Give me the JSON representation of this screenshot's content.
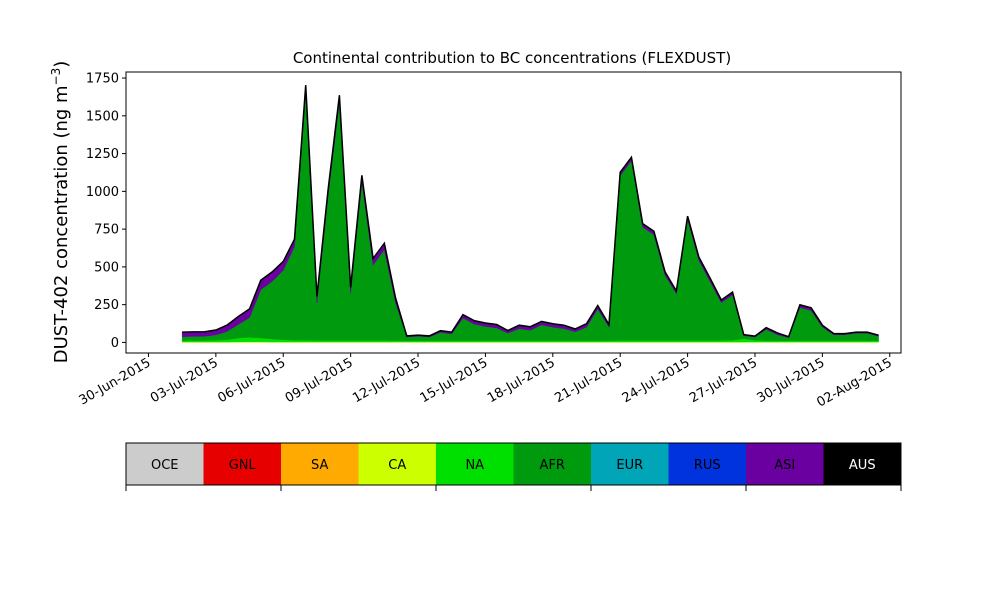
{
  "chart_data": {
    "type": "area",
    "stacked": true,
    "title": "Continental contribution to BC concentrations (FLEXDUST)",
    "ylabel": "DUST-402 concentration (ng m",
    "ylabel_superscript": "−3",
    "ylabel_suffix": ")",
    "xlabel": "",
    "xlim": [
      "2015-06-29",
      "2015-08-02T12:00"
    ],
    "ylim": [
      -70,
      1790
    ],
    "yticks": [
      0,
      250,
      500,
      750,
      1000,
      1250,
      1500,
      1750
    ],
    "xticks": [
      "2015-06-30",
      "2015-07-03",
      "2015-07-06",
      "2015-07-09",
      "2015-07-12",
      "2015-07-15",
      "2015-07-18",
      "2015-07-21",
      "2015-07-24",
      "2015-07-27",
      "2015-07-30",
      "2015-08-02"
    ],
    "xtick_labels": [
      "30-Jun-2015",
      "03-Jul-2015",
      "06-Jul-2015",
      "09-Jul-2015",
      "12-Jul-2015",
      "15-Jul-2015",
      "18-Jul-2015",
      "21-Jul-2015",
      "24-Jul-2015",
      "27-Jul-2015",
      "30-Jul-2015",
      "02-Aug-2015"
    ],
    "legend_placement": "below",
    "legend": [
      {
        "name": "OCE",
        "color": "#cccccc",
        "text_color": "#000000"
      },
      {
        "name": "GNL",
        "color": "#e60000",
        "text_color": "#000000"
      },
      {
        "name": "SA",
        "color": "#ffaa00",
        "text_color": "#000000"
      },
      {
        "name": "CA",
        "color": "#ccff00",
        "text_color": "#000000"
      },
      {
        "name": "NA",
        "color": "#00e000",
        "text_color": "#000000"
      },
      {
        "name": "AFR",
        "color": "#009a0e",
        "text_color": "#000000"
      },
      {
        "name": "EUR",
        "color": "#00a5b8",
        "text_color": "#000000"
      },
      {
        "name": "RUS",
        "color": "#0033dd",
        "text_color": "#000000"
      },
      {
        "name": "ASI",
        "color": "#6a00a0",
        "text_color": "#000000"
      },
      {
        "name": "AUS",
        "color": "#000000",
        "text_color": "#ffffff"
      }
    ],
    "x": [
      "2015-07-01T12:00",
      "2015-07-02",
      "2015-07-02T12:00",
      "2015-07-03",
      "2015-07-03T12:00",
      "2015-07-04",
      "2015-07-04T12:00",
      "2015-07-05",
      "2015-07-05T12:00",
      "2015-07-06",
      "2015-07-06T12:00",
      "2015-07-07",
      "2015-07-07T12:00",
      "2015-07-08",
      "2015-07-08T12:00",
      "2015-07-09",
      "2015-07-09T12:00",
      "2015-07-10",
      "2015-07-10T12:00",
      "2015-07-11",
      "2015-07-11T12:00",
      "2015-07-12",
      "2015-07-12T12:00",
      "2015-07-13",
      "2015-07-13T12:00",
      "2015-07-14",
      "2015-07-14T12:00",
      "2015-07-15",
      "2015-07-15T12:00",
      "2015-07-16",
      "2015-07-16T12:00",
      "2015-07-17",
      "2015-07-17T12:00",
      "2015-07-18",
      "2015-07-18T12:00",
      "2015-07-19",
      "2015-07-19T12:00",
      "2015-07-20",
      "2015-07-20T12:00",
      "2015-07-21",
      "2015-07-21T12:00",
      "2015-07-22",
      "2015-07-22T12:00",
      "2015-07-23",
      "2015-07-23T12:00",
      "2015-07-24",
      "2015-07-24T12:00",
      "2015-07-25",
      "2015-07-25T12:00",
      "2015-07-26",
      "2015-07-26T12:00",
      "2015-07-27",
      "2015-07-27T12:00",
      "2015-07-28",
      "2015-07-28T12:00",
      "2015-07-29",
      "2015-07-29T12:00",
      "2015-07-30",
      "2015-07-30T12:00",
      "2015-07-31",
      "2015-07-31T12:00",
      "2015-08-01",
      "2015-08-01T12:00"
    ],
    "series": [
      {
        "name": "CA",
        "color": "#ccff00",
        "values": [
          3,
          3,
          3,
          3,
          3,
          4,
          4,
          4,
          3,
          3,
          3,
          3,
          3,
          3,
          3,
          3,
          3,
          3,
          3,
          3,
          3,
          3,
          3,
          3,
          3,
          3,
          3,
          3,
          3,
          3,
          3,
          3,
          3,
          3,
          3,
          3,
          3,
          3,
          3,
          3,
          3,
          3,
          3,
          3,
          3,
          3,
          3,
          3,
          3,
          3,
          3,
          3,
          3,
          3,
          3,
          3,
          3,
          3,
          3,
          3,
          3,
          3,
          3
        ]
      },
      {
        "name": "NA",
        "color": "#00e000",
        "values": [
          10,
          10,
          10,
          12,
          15,
          25,
          30,
          25,
          20,
          15,
          12,
          12,
          10,
          10,
          10,
          10,
          10,
          10,
          10,
          8,
          8,
          8,
          8,
          8,
          8,
          8,
          8,
          8,
          8,
          8,
          8,
          8,
          8,
          8,
          8,
          8,
          8,
          8,
          8,
          10,
          10,
          10,
          10,
          10,
          10,
          10,
          10,
          10,
          10,
          12,
          22,
          12,
          8,
          8,
          8,
          8,
          8,
          8,
          8,
          8,
          8,
          8,
          8
        ]
      },
      {
        "name": "AFR",
        "color": "#009a0e",
        "values": [
          25,
          27,
          28,
          35,
          55,
          90,
          130,
          320,
          380,
          460,
          620,
          1640,
          250,
          960,
          1580,
          310,
          1050,
          500,
          600,
          250,
          25,
          30,
          25,
          55,
          45,
          150,
          110,
          95,
          85,
          50,
          80,
          70,
          105,
          90,
          80,
          60,
          90,
          210,
          90,
          1090,
          1190,
          750,
          700,
          430,
          310,
          800,
          530,
          390,
          250,
          300,
          20,
          20,
          75,
          40,
          20,
          220,
          200,
          90,
          40,
          40,
          50,
          50,
          30
        ]
      },
      {
        "name": "ASI",
        "color": "#6a00a0",
        "values": [
          28,
          28,
          28,
          30,
          40,
          50,
          55,
          60,
          60,
          55,
          45,
          45,
          40,
          40,
          40,
          40,
          40,
          40,
          40,
          30,
          5,
          5,
          5,
          10,
          10,
          20,
          20,
          20,
          20,
          15,
          20,
          20,
          20,
          20,
          20,
          15,
          20,
          20,
          15,
          20,
          20,
          20,
          20,
          20,
          15,
          20,
          20,
          20,
          15,
          15,
          5,
          5,
          10,
          10,
          5,
          15,
          15,
          10,
          5,
          5,
          5,
          5,
          5
        ]
      },
      {
        "name": "AUS",
        "color": "#000000",
        "values": [
          2,
          2,
          2,
          2,
          2,
          3,
          3,
          3,
          3,
          3,
          3,
          3,
          3,
          3,
          3,
          3,
          3,
          3,
          3,
          3,
          2,
          2,
          2,
          2,
          2,
          3,
          3,
          3,
          3,
          3,
          3,
          3,
          3,
          3,
          3,
          3,
          3,
          3,
          3,
          3,
          3,
          3,
          3,
          3,
          3,
          3,
          3,
          3,
          3,
          3,
          2,
          2,
          2,
          2,
          2,
          3,
          3,
          3,
          3,
          2,
          2,
          2,
          2
        ]
      }
    ]
  }
}
